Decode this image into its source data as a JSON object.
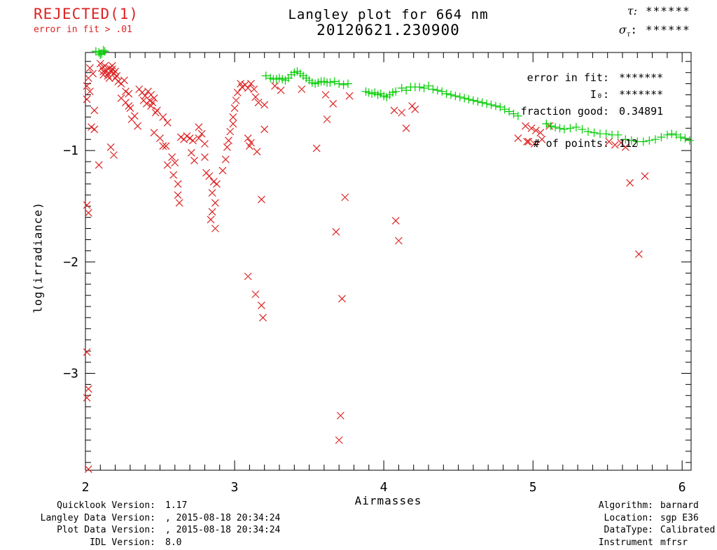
{
  "status": {
    "title": "REJECTED(1)",
    "subtitle": "error in fit > .01"
  },
  "header": {
    "title": "Langley plot for 664 nm",
    "subtitle": "20120621.230900",
    "tau_label": "τ:",
    "tau_value": "******",
    "sigma_base": "σ",
    "sigma_sub": "τ",
    "sigma_colon": ":",
    "sigma_value": "******"
  },
  "stats": {
    "error_label": "error in fit:",
    "error_value": "*******",
    "i0_label": "I₀:",
    "i0_value": "*******",
    "fraction_label": "fraction good:",
    "fraction_value": "0.34891",
    "points_label": "# of points:",
    "points_value": "112"
  },
  "footer_left": {
    "rows": [
      {
        "label": "Quicklook Version:",
        "value": "1.17"
      },
      {
        "label": "Langley Data Version:",
        "value": ", 2015-08-18 20:34:24"
      },
      {
        "label": "Plot Data Version:",
        "value": ", 2015-08-18 20:34:24"
      },
      {
        "label": "IDL Version:",
        "value": "8.0"
      }
    ]
  },
  "footer_right": {
    "rows": [
      {
        "label": "Algorithm:",
        "value": "barnard"
      },
      {
        "label": "Location:",
        "value": "sgp E36"
      },
      {
        "label": "DataType:",
        "value": "Calibrated"
      },
      {
        "label": "Instrument",
        "value": "mfrsr"
      }
    ]
  },
  "colors": {
    "rejected_red": "#dd2222",
    "good_green": "#00cc00",
    "axis_black": "#000000"
  },
  "chart_data": {
    "type": "scatter",
    "title": "Langley plot for 664 nm",
    "subtitle": "20120621.230900",
    "xlabel": "Airmasses",
    "ylabel": "log(irradiance)",
    "xlim": [
      2,
      6.06
    ],
    "ylim": [
      -3.87,
      -0.12
    ],
    "x_major_ticks": [
      2,
      3,
      4,
      5,
      6
    ],
    "y_major_ticks": [
      -1,
      -2,
      -3
    ],
    "minor_tick_step": 0.1,
    "grid": false,
    "series": [
      {
        "name": "rejected",
        "marker": "x",
        "color": "#dd2222",
        "points": [
          [
            2.01,
            -0.42
          ],
          [
            2.03,
            -0.47
          ],
          [
            2.01,
            -0.54
          ],
          [
            2.03,
            -0.26
          ],
          [
            2.05,
            -0.31
          ],
          [
            2.02,
            -0.35
          ],
          [
            2.06,
            -0.64
          ],
          [
            2.04,
            -0.79
          ],
          [
            2.06,
            -0.81
          ],
          [
            2.09,
            -1.13
          ],
          [
            2.01,
            -1.49
          ],
          [
            2.02,
            -1.56
          ],
          [
            2.01,
            -2.81
          ],
          [
            2.02,
            -3.14
          ],
          [
            2.01,
            -3.22
          ],
          [
            2.02,
            -3.86
          ],
          [
            2.1,
            -0.22
          ],
          [
            2.11,
            -0.26
          ],
          [
            2.12,
            -0.29
          ],
          [
            2.13,
            -0.24
          ],
          [
            2.14,
            -0.28
          ],
          [
            2.15,
            -0.31
          ],
          [
            2.16,
            -0.26
          ],
          [
            2.17,
            -0.29
          ],
          [
            2.18,
            -0.27
          ],
          [
            2.19,
            -0.31
          ],
          [
            2.2,
            -0.29
          ],
          [
            2.21,
            -0.33
          ],
          [
            2.15,
            -0.33
          ],
          [
            2.12,
            -0.32
          ],
          [
            2.16,
            -0.35
          ],
          [
            2.18,
            -0.24
          ],
          [
            2.2,
            -0.35
          ],
          [
            2.22,
            -0.38
          ],
          [
            2.24,
            -0.4
          ],
          [
            2.26,
            -0.37
          ],
          [
            2.27,
            -0.47
          ],
          [
            2.29,
            -0.49
          ],
          [
            2.24,
            -0.53
          ],
          [
            2.27,
            -0.57
          ],
          [
            2.29,
            -0.6
          ],
          [
            2.3,
            -0.62
          ],
          [
            2.33,
            -0.69
          ],
          [
            2.31,
            -0.72
          ],
          [
            2.35,
            -0.78
          ],
          [
            2.17,
            -0.97
          ],
          [
            2.19,
            -1.04
          ],
          [
            2.36,
            -0.45
          ],
          [
            2.38,
            -0.48
          ],
          [
            2.4,
            -0.51
          ],
          [
            2.42,
            -0.47
          ],
          [
            2.44,
            -0.5
          ],
          [
            2.46,
            -0.53
          ],
          [
            2.39,
            -0.55
          ],
          [
            2.41,
            -0.58
          ],
          [
            2.43,
            -0.55
          ],
          [
            2.45,
            -0.57
          ],
          [
            2.44,
            -0.6
          ],
          [
            2.47,
            -0.66
          ],
          [
            2.48,
            -0.64
          ],
          [
            2.52,
            -0.7
          ],
          [
            2.55,
            -0.75
          ],
          [
            2.46,
            -0.84
          ],
          [
            2.5,
            -0.89
          ],
          [
            2.52,
            -0.96
          ],
          [
            2.54,
            -0.96
          ],
          [
            2.58,
            -1.06
          ],
          [
            2.6,
            -1.11
          ],
          [
            2.55,
            -1.13
          ],
          [
            2.59,
            -1.22
          ],
          [
            2.62,
            -1.3
          ],
          [
            2.62,
            -1.4
          ],
          [
            2.63,
            -1.47
          ],
          [
            2.64,
            -0.88
          ],
          [
            2.66,
            -0.9
          ],
          [
            2.68,
            -0.87
          ],
          [
            2.7,
            -0.89
          ],
          [
            2.72,
            -0.91
          ],
          [
            2.76,
            -0.79
          ],
          [
            2.76,
            -0.89
          ],
          [
            2.71,
            -1.02
          ],
          [
            2.73,
            -1.09
          ],
          [
            2.78,
            -0.85
          ],
          [
            2.8,
            -0.94
          ],
          [
            2.8,
            -1.06
          ],
          [
            2.81,
            -1.2
          ],
          [
            2.83,
            -1.23
          ],
          [
            2.86,
            -1.28
          ],
          [
            2.88,
            -1.3
          ],
          [
            2.85,
            -1.38
          ],
          [
            2.87,
            -1.47
          ],
          [
            2.85,
            -1.55
          ],
          [
            2.84,
            -1.62
          ],
          [
            2.87,
            -1.7
          ],
          [
            2.92,
            -1.18
          ],
          [
            2.94,
            -1.08
          ],
          [
            2.95,
            -0.97
          ],
          [
            2.96,
            -0.91
          ],
          [
            2.97,
            -0.83
          ],
          [
            2.99,
            -0.76
          ],
          [
            2.99,
            -0.7
          ],
          [
            3.0,
            -0.62
          ],
          [
            3.01,
            -0.55
          ],
          [
            3.02,
            -0.48
          ],
          [
            3.04,
            -0.4
          ],
          [
            3.05,
            -0.43
          ],
          [
            3.07,
            -0.41
          ],
          [
            3.09,
            -0.44
          ],
          [
            3.11,
            -0.4
          ],
          [
            3.13,
            -0.45
          ],
          [
            3.09,
            -0.89
          ],
          [
            3.11,
            -0.93
          ],
          [
            3.1,
            -0.96
          ],
          [
            3.15,
            -1.01
          ],
          [
            3.14,
            -0.52
          ],
          [
            3.16,
            -0.57
          ],
          [
            3.2,
            -0.59
          ],
          [
            3.2,
            -0.81
          ],
          [
            3.18,
            -1.44
          ],
          [
            3.27,
            -0.42
          ],
          [
            3.31,
            -0.46
          ],
          [
            3.09,
            -2.13
          ],
          [
            3.14,
            -2.29
          ],
          [
            3.18,
            -2.39
          ],
          [
            3.19,
            -2.5
          ],
          [
            3.45,
            -0.45
          ],
          [
            3.55,
            -0.98
          ],
          [
            3.61,
            -0.5
          ],
          [
            3.66,
            -0.58
          ],
          [
            3.62,
            -0.72
          ],
          [
            3.77,
            -0.51
          ],
          [
            3.74,
            -1.42
          ],
          [
            3.68,
            -1.73
          ],
          [
            3.72,
            -2.33
          ],
          [
            3.71,
            -3.38
          ],
          [
            3.7,
            -3.6
          ],
          [
            4.07,
            -0.64
          ],
          [
            4.12,
            -0.66
          ],
          [
            4.19,
            -0.6
          ],
          [
            4.21,
            -0.63
          ],
          [
            4.15,
            -0.8
          ],
          [
            4.08,
            -1.63
          ],
          [
            4.1,
            -1.81
          ],
          [
            4.9,
            -0.89
          ],
          [
            4.96,
            -0.92
          ],
          [
            4.95,
            -0.78
          ],
          [
            4.99,
            -0.8
          ],
          [
            5.02,
            -0.82
          ],
          [
            5.05,
            -0.84
          ],
          [
            4.97,
            -0.92
          ],
          [
            5.01,
            -0.94
          ],
          [
            5.06,
            -0.9
          ],
          [
            5.11,
            -0.78
          ],
          [
            5.51,
            -0.92
          ],
          [
            5.55,
            -0.95
          ],
          [
            5.59,
            -0.93
          ],
          [
            5.62,
            -0.97
          ],
          [
            5.65,
            -1.29
          ],
          [
            5.75,
            -1.23
          ],
          [
            5.71,
            -1.93
          ]
        ]
      },
      {
        "name": "good",
        "marker": "+",
        "color": "#00cc00",
        "points": [
          [
            2.07,
            -0.11
          ],
          [
            2.09,
            -0.12
          ],
          [
            2.11,
            -0.13
          ],
          [
            2.13,
            -0.11
          ],
          [
            2.1,
            -0.14
          ],
          [
            2.12,
            -0.1
          ],
          [
            3.21,
            -0.33
          ],
          [
            3.24,
            -0.35
          ],
          [
            3.26,
            -0.36
          ],
          [
            3.28,
            -0.36
          ],
          [
            3.3,
            -0.35
          ],
          [
            3.32,
            -0.36
          ],
          [
            3.34,
            -0.37
          ],
          [
            3.36,
            -0.35
          ],
          [
            3.38,
            -0.32
          ],
          [
            3.4,
            -0.3
          ],
          [
            3.42,
            -0.29
          ],
          [
            3.44,
            -0.31
          ],
          [
            3.46,
            -0.33
          ],
          [
            3.48,
            -0.35
          ],
          [
            3.5,
            -0.37
          ],
          [
            3.52,
            -0.39
          ],
          [
            3.54,
            -0.4
          ],
          [
            3.56,
            -0.39
          ],
          [
            3.58,
            -0.38
          ],
          [
            3.6,
            -0.38
          ],
          [
            3.62,
            -0.39
          ],
          [
            3.64,
            -0.39
          ],
          [
            3.67,
            -0.38
          ],
          [
            3.7,
            -0.4
          ],
          [
            3.73,
            -0.41
          ],
          [
            3.76,
            -0.4
          ],
          [
            3.88,
            -0.47
          ],
          [
            3.9,
            -0.48
          ],
          [
            3.92,
            -0.49
          ],
          [
            3.94,
            -0.48
          ],
          [
            3.96,
            -0.5
          ],
          [
            3.98,
            -0.49
          ],
          [
            4.0,
            -0.51
          ],
          [
            4.02,
            -0.52
          ],
          [
            4.04,
            -0.5
          ],
          [
            4.06,
            -0.48
          ],
          [
            4.08,
            -0.47
          ],
          [
            4.12,
            -0.44
          ],
          [
            4.15,
            -0.46
          ],
          [
            4.18,
            -0.43
          ],
          [
            4.21,
            -0.43
          ],
          [
            4.24,
            -0.43
          ],
          [
            4.27,
            -0.44
          ],
          [
            4.3,
            -0.42
          ],
          [
            4.33,
            -0.45
          ],
          [
            4.36,
            -0.46
          ],
          [
            4.39,
            -0.47
          ],
          [
            4.42,
            -0.49
          ],
          [
            4.45,
            -0.5
          ],
          [
            4.48,
            -0.51
          ],
          [
            4.51,
            -0.52
          ],
          [
            4.54,
            -0.53
          ],
          [
            4.57,
            -0.54
          ],
          [
            4.6,
            -0.55
          ],
          [
            4.63,
            -0.56
          ],
          [
            4.66,
            -0.57
          ],
          [
            4.69,
            -0.58
          ],
          [
            4.72,
            -0.59
          ],
          [
            4.75,
            -0.6
          ],
          [
            4.78,
            -0.61
          ],
          [
            4.81,
            -0.63
          ],
          [
            4.84,
            -0.65
          ],
          [
            4.87,
            -0.67
          ],
          [
            4.9,
            -0.69
          ],
          [
            5.09,
            -0.76
          ],
          [
            5.12,
            -0.78
          ],
          [
            5.15,
            -0.79
          ],
          [
            5.18,
            -0.8
          ],
          [
            5.21,
            -0.81
          ],
          [
            5.25,
            -0.8
          ],
          [
            5.29,
            -0.79
          ],
          [
            5.33,
            -0.81
          ],
          [
            5.37,
            -0.83
          ],
          [
            5.41,
            -0.84
          ],
          [
            5.45,
            -0.85
          ],
          [
            5.49,
            -0.85
          ],
          [
            5.53,
            -0.86
          ],
          [
            5.57,
            -0.86
          ],
          [
            5.62,
            -0.9
          ],
          [
            5.66,
            -0.91
          ],
          [
            5.7,
            -0.92
          ],
          [
            5.74,
            -0.92
          ],
          [
            5.78,
            -0.91
          ],
          [
            5.82,
            -0.9
          ],
          [
            5.86,
            -0.88
          ],
          [
            5.9,
            -0.86
          ],
          [
            5.93,
            -0.85
          ],
          [
            5.96,
            -0.86
          ],
          [
            5.99,
            -0.88
          ],
          [
            6.02,
            -0.89
          ],
          [
            6.05,
            -0.91
          ]
        ]
      }
    ]
  }
}
